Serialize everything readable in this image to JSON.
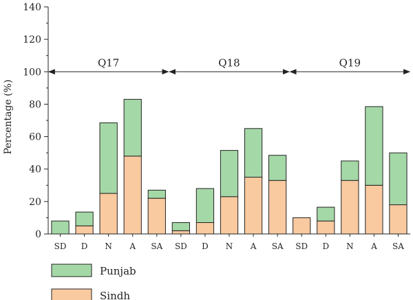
{
  "chart_data": {
    "type": "bar",
    "stacked": true,
    "ylabel": "Percentage (%)",
    "ylim": [
      0,
      140
    ],
    "yticks": [
      0,
      20,
      40,
      60,
      80,
      100,
      120,
      140
    ],
    "categories": [
      "SD",
      "D",
      "N",
      "A",
      "SA",
      "SD",
      "D",
      "N",
      "A",
      "SA",
      "SD",
      "D",
      "N",
      "A",
      "SA"
    ],
    "groups": [
      {
        "label": "Q17",
        "from": 0,
        "to": 4,
        "arrow_y": 100
      },
      {
        "label": "Q18",
        "from": 5,
        "to": 9,
        "arrow_y": 100
      },
      {
        "label": "Q19",
        "from": 10,
        "to": 14,
        "arrow_y": 100
      }
    ],
    "series": [
      {
        "name": "Sindh",
        "color": "#f9c9a0",
        "values": [
          0,
          5,
          25,
          48,
          22,
          2,
          7,
          23,
          35,
          33,
          10,
          8,
          33,
          30,
          18
        ]
      },
      {
        "name": "Punjab",
        "color": "#a5d8a7",
        "values": [
          8,
          8.5,
          43.5,
          35,
          5,
          5,
          21,
          28.5,
          30,
          15.5,
          0,
          8.5,
          12,
          48.5,
          32
        ]
      }
    ],
    "legend": [
      {
        "name": "Punjab",
        "color": "#a5d8a7"
      },
      {
        "name": "Sindh",
        "color": "#f9c9a0"
      }
    ],
    "legend_position": "bottom-left",
    "grid": false
  }
}
